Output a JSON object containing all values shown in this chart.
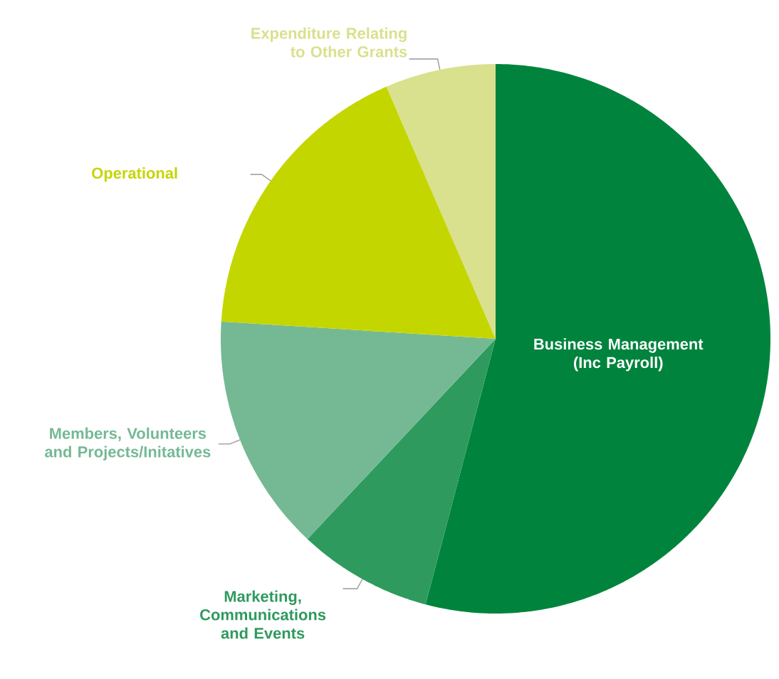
{
  "chart_data": {
    "type": "pie",
    "categories": [
      "Business Management (Inc Payroll)",
      "Marketing, Communications and Events",
      "Members, Volunteers and Projects/Initatives",
      "Operational",
      "Expenditure Relating to Other Grants"
    ],
    "values": [
      54.1,
      7.9,
      14.0,
      17.5,
      6.5
    ],
    "colors": [
      "#00843d",
      "#2e9a5e",
      "#74b994",
      "#c4d600",
      "#d9e08e"
    ]
  }
}
